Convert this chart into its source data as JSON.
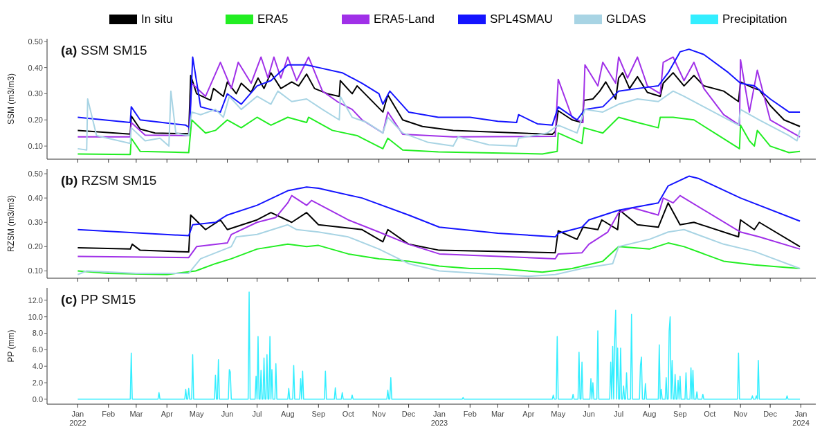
{
  "chart_data": [
    {
      "type": "line",
      "title": "(a) SSM SM15",
      "ylabel": "SSM (m3/m3)",
      "legend": "top",
      "tick_labels": "y",
      "xlim": [
        "2021-12-01",
        "2024-01-16"
      ],
      "xticks": [
        {
          "value": "2022-01-01",
          "label": null
        },
        {
          "value": "2022-02-01",
          "label": null
        },
        {
          "value": "2022-03-01",
          "label": null
        },
        {
          "value": "2022-04-01",
          "label": null
        },
        {
          "value": "2022-05-01",
          "label": null
        },
        {
          "value": "2022-06-01",
          "label": null
        },
        {
          "value": "2022-07-01",
          "label": null
        },
        {
          "value": "2022-08-01",
          "label": null
        },
        {
          "value": "2022-09-01",
          "label": null
        },
        {
          "value": "2022-10-01",
          "label": null
        },
        {
          "value": "2022-11-01",
          "label": null
        },
        {
          "value": "2022-12-01",
          "label": null
        },
        {
          "value": "2023-01-01",
          "label": null
        },
        {
          "value": "2023-02-01",
          "label": null
        },
        {
          "value": "2023-03-01",
          "label": null
        },
        {
          "value": "2023-04-01",
          "label": null
        },
        {
          "value": "2023-05-01",
          "label": null
        },
        {
          "value": "2023-06-01",
          "label": null
        },
        {
          "value": "2023-07-01",
          "label": null
        },
        {
          "value": "2023-08-01",
          "label": null
        },
        {
          "value": "2023-09-01",
          "label": null
        },
        {
          "value": "2023-10-01",
          "label": null
        },
        {
          "value": "2023-11-01",
          "label": null
        },
        {
          "value": "2023-12-01",
          "label": null
        },
        {
          "value": "2024-01-01",
          "label": null
        }
      ],
      "ylim": [
        0.05,
        0.51
      ],
      "yticks": [
        {
          "value": 0.1,
          "label": "0.10"
        },
        {
          "value": 0.2,
          "label": "0.20"
        },
        {
          "value": 0.3,
          "label": "0.30"
        },
        {
          "value": 0.4,
          "label": "0.40"
        },
        {
          "value": 0.5,
          "label": "0.50"
        }
      ],
      "series": [
        {
          "name": "In situ",
          "color": "#000000",
          "x": [
            "2022-01-01",
            "2022-02-23",
            "2022-02-24",
            "2022-03-05",
            "2022-03-20",
            "2022-04-23",
            "2022-04-25",
            "2022-05-01",
            "2022-05-15",
            "2022-05-18",
            "2022-05-28",
            "2022-06-01",
            "2022-06-10",
            "2022-06-15",
            "2022-06-25",
            "2022-07-02",
            "2022-07-08",
            "2022-07-15",
            "2022-07-25",
            "2022-08-05",
            "2022-08-12",
            "2022-08-20",
            "2022-08-28",
            "2022-09-10",
            "2022-09-22",
            "2022-09-23",
            "2022-10-05",
            "2022-10-10",
            "2022-11-05",
            "2022-11-10",
            "2022-11-25",
            "2022-12-15",
            "2023-01-15",
            "2023-04-25",
            "2023-04-28",
            "2023-05-01",
            "2023-05-15",
            "2023-05-25",
            "2023-05-27",
            "2023-06-05",
            "2023-06-12",
            "2023-06-18",
            "2023-06-28",
            "2023-07-01",
            "2023-07-05",
            "2023-07-12",
            "2023-07-20",
            "2023-07-30",
            "2023-08-12",
            "2023-08-15",
            "2023-08-25",
            "2023-09-05",
            "2023-09-15",
            "2023-09-25",
            "2023-10-15",
            "2023-10-30",
            "2023-11-01",
            "2023-11-15",
            "2023-11-20",
            "2023-12-01",
            "2023-12-15",
            "2023-12-31"
          ],
          "values": [
            0.16,
            0.146,
            0.215,
            0.165,
            0.15,
            0.147,
            0.37,
            0.3,
            0.275,
            0.32,
            0.29,
            0.345,
            0.3,
            0.34,
            0.305,
            0.36,
            0.32,
            0.38,
            0.32,
            0.345,
            0.33,
            0.375,
            0.32,
            0.3,
            0.29,
            0.35,
            0.3,
            0.33,
            0.23,
            0.295,
            0.2,
            0.175,
            0.16,
            0.145,
            0.155,
            0.235,
            0.2,
            0.19,
            0.275,
            0.28,
            0.31,
            0.345,
            0.28,
            0.36,
            0.38,
            0.32,
            0.365,
            0.305,
            0.29,
            0.34,
            0.38,
            0.33,
            0.37,
            0.33,
            0.31,
            0.27,
            0.345,
            0.32,
            0.315,
            0.255,
            0.2,
            0.175
          ]
        },
        {
          "name": "ERA5",
          "color": "#22ee22",
          "x": [
            "2022-01-01",
            "2022-02-23",
            "2022-02-24",
            "2022-03-05",
            "2022-04-23",
            "2022-04-26",
            "2022-05-10",
            "2022-05-20",
            "2022-06-01",
            "2022-06-15",
            "2022-07-01",
            "2022-07-15",
            "2022-08-01",
            "2022-08-20",
            "2022-08-22",
            "2022-09-15",
            "2022-10-10",
            "2022-10-15",
            "2022-11-05",
            "2022-11-10",
            "2022-11-25",
            "2022-12-31",
            "2023-04-15",
            "2023-04-30",
            "2023-05-01",
            "2023-05-25",
            "2023-05-27",
            "2023-06-15",
            "2023-07-01",
            "2023-07-20",
            "2023-08-10",
            "2023-08-12",
            "2023-08-25",
            "2023-09-15",
            "2023-10-10",
            "2023-10-31",
            "2023-11-01",
            "2023-11-10",
            "2023-11-15",
            "2023-11-18",
            "2023-12-01",
            "2023-12-20",
            "2023-12-31"
          ],
          "values": [
            0.07,
            0.068,
            0.13,
            0.08,
            0.075,
            0.2,
            0.15,
            0.16,
            0.2,
            0.17,
            0.21,
            0.18,
            0.21,
            0.19,
            0.21,
            0.16,
            0.14,
            0.13,
            0.09,
            0.13,
            0.085,
            0.078,
            0.07,
            0.08,
            0.15,
            0.11,
            0.17,
            0.15,
            0.21,
            0.19,
            0.17,
            0.21,
            0.21,
            0.2,
            0.14,
            0.09,
            0.18,
            0.12,
            0.1,
            0.16,
            0.1,
            0.075,
            0.08
          ]
        },
        {
          "name": "ERA5-Land",
          "color": "#a030e8",
          "x": [
            "2022-01-01",
            "2022-02-23",
            "2022-02-24",
            "2022-03-10",
            "2022-04-23",
            "2022-04-26",
            "2022-05-10",
            "2022-05-25",
            "2022-06-05",
            "2022-06-12",
            "2022-06-25",
            "2022-07-05",
            "2022-07-12",
            "2022-07-18",
            "2022-07-25",
            "2022-08-01",
            "2022-08-10",
            "2022-08-22",
            "2022-09-05",
            "2022-09-20",
            "2022-10-05",
            "2022-10-15",
            "2022-11-05",
            "2022-11-10",
            "2022-11-25",
            "2023-01-15",
            "2023-04-28",
            "2023-05-01",
            "2023-05-15",
            "2023-05-26",
            "2023-05-28",
            "2023-06-10",
            "2023-06-15",
            "2023-06-28",
            "2023-07-01",
            "2023-07-10",
            "2023-07-20",
            "2023-07-30",
            "2023-08-12",
            "2023-08-15",
            "2023-08-25",
            "2023-09-05",
            "2023-09-15",
            "2023-09-25",
            "2023-10-15",
            "2023-10-31",
            "2023-11-01",
            "2023-11-10",
            "2023-11-18",
            "2023-12-01",
            "2023-12-31"
          ],
          "values": [
            0.135,
            0.135,
            0.19,
            0.142,
            0.14,
            0.34,
            0.29,
            0.42,
            0.32,
            0.42,
            0.34,
            0.44,
            0.36,
            0.44,
            0.36,
            0.44,
            0.35,
            0.44,
            0.31,
            0.27,
            0.24,
            0.2,
            0.15,
            0.23,
            0.145,
            0.135,
            0.137,
            0.355,
            0.21,
            0.19,
            0.41,
            0.33,
            0.42,
            0.34,
            0.44,
            0.36,
            0.44,
            0.33,
            0.3,
            0.42,
            0.44,
            0.35,
            0.42,
            0.32,
            0.22,
            0.18,
            0.43,
            0.23,
            0.39,
            0.2,
            0.135
          ]
        },
        {
          "name": "SPL4SMAU",
          "color": "#1414ff",
          "x": [
            "2022-01-01",
            "2022-02-23",
            "2022-02-24",
            "2022-03-05",
            "2022-04-20",
            "2022-04-24",
            "2022-04-27",
            "2022-05-05",
            "2022-05-25",
            "2022-06-01",
            "2022-06-15",
            "2022-07-01",
            "2022-07-15",
            "2022-08-01",
            "2022-08-20",
            "2022-09-01",
            "2022-09-25",
            "2022-10-15",
            "2022-11-01",
            "2022-11-05",
            "2022-11-12",
            "2022-12-01",
            "2022-12-31",
            "2023-02-01",
            "2023-03-01",
            "2023-03-20",
            "2023-03-22",
            "2023-04-10",
            "2023-04-25",
            "2023-05-01",
            "2023-05-20",
            "2023-05-28",
            "2023-06-15",
            "2023-07-01",
            "2023-07-20",
            "2023-08-10",
            "2023-08-20",
            "2023-09-01",
            "2023-09-10",
            "2023-09-25",
            "2023-10-20",
            "2023-11-01",
            "2023-11-15",
            "2023-12-01",
            "2023-12-20",
            "2023-12-31"
          ],
          "values": [
            0.21,
            0.19,
            0.25,
            0.2,
            0.18,
            0.17,
            0.44,
            0.25,
            0.23,
            0.3,
            0.26,
            0.33,
            0.35,
            0.41,
            0.41,
            0.4,
            0.38,
            0.34,
            0.3,
            0.26,
            0.31,
            0.23,
            0.21,
            0.21,
            0.195,
            0.19,
            0.22,
            0.185,
            0.18,
            0.25,
            0.2,
            0.24,
            0.25,
            0.31,
            0.32,
            0.33,
            0.38,
            0.46,
            0.47,
            0.45,
            0.38,
            0.34,
            0.33,
            0.28,
            0.23,
            0.23
          ]
        },
        {
          "name": "GLDAS",
          "color": "#a8d4e4",
          "x": [
            "2022-01-01",
            "2022-01-10",
            "2022-01-11",
            "2022-01-20",
            "2022-02-23",
            "2022-02-24",
            "2022-03-10",
            "2022-03-25",
            "2022-04-03",
            "2022-04-05",
            "2022-04-10",
            "2022-04-23",
            "2022-04-26",
            "2022-05-05",
            "2022-05-20",
            "2022-05-28",
            "2022-06-03",
            "2022-06-15",
            "2022-07-01",
            "2022-07-15",
            "2022-07-22",
            "2022-08-05",
            "2022-08-20",
            "2022-09-05",
            "2022-09-22",
            "2022-09-23",
            "2022-10-05",
            "2022-10-20",
            "2022-11-05",
            "2022-11-10",
            "2022-11-25",
            "2022-12-20",
            "2023-01-15",
            "2023-01-20",
            "2023-02-20",
            "2023-03-20",
            "2023-03-22",
            "2023-04-20",
            "2023-05-01",
            "2023-05-20",
            "2023-05-28",
            "2023-06-15",
            "2023-07-01",
            "2023-07-20",
            "2023-08-10",
            "2023-08-25",
            "2023-09-05",
            "2023-09-25",
            "2023-10-30",
            "2023-11-01",
            "2023-11-20",
            "2023-12-20",
            "2023-12-28",
            "2023-12-31"
          ],
          "values": [
            0.09,
            0.085,
            0.28,
            0.14,
            0.11,
            0.17,
            0.12,
            0.13,
            0.1,
            0.31,
            0.15,
            0.14,
            0.23,
            0.22,
            0.24,
            0.21,
            0.29,
            0.24,
            0.29,
            0.26,
            0.31,
            0.27,
            0.28,
            0.24,
            0.2,
            0.29,
            0.21,
            0.19,
            0.15,
            0.21,
            0.15,
            0.115,
            0.1,
            0.135,
            0.105,
            0.1,
            0.13,
            0.15,
            0.18,
            0.15,
            0.24,
            0.23,
            0.26,
            0.28,
            0.27,
            0.31,
            0.29,
            0.25,
            0.18,
            0.24,
            0.2,
            0.14,
            0.12,
            0.16
          ]
        }
      ]
    },
    {
      "type": "line",
      "title": "(b) RZSM SM15",
      "ylabel": "RZSM (m3/m3)",
      "tick_labels": "y",
      "xlim": [
        "2021-12-01",
        "2024-01-16"
      ],
      "xticks": [
        {
          "value": "2022-01-01",
          "label": null
        },
        {
          "value": "2022-02-01",
          "label": null
        },
        {
          "value": "2022-03-01",
          "label": null
        },
        {
          "value": "2022-04-01",
          "label": null
        },
        {
          "value": "2022-05-01",
          "label": null
        },
        {
          "value": "2022-06-01",
          "label": null
        },
        {
          "value": "2022-07-01",
          "label": null
        },
        {
          "value": "2022-08-01",
          "label": null
        },
        {
          "value": "2022-09-01",
          "label": null
        },
        {
          "value": "2022-10-01",
          "label": null
        },
        {
          "value": "2022-11-01",
          "label": null
        },
        {
          "value": "2022-12-01",
          "label": null
        },
        {
          "value": "2023-01-01",
          "label": null
        },
        {
          "value": "2023-02-01",
          "label": null
        },
        {
          "value": "2023-03-01",
          "label": null
        },
        {
          "value": "2023-04-01",
          "label": null
        },
        {
          "value": "2023-05-01",
          "label": null
        },
        {
          "value": "2023-06-01",
          "label": null
        },
        {
          "value": "2023-07-01",
          "label": null
        },
        {
          "value": "2023-08-01",
          "label": null
        },
        {
          "value": "2023-09-01",
          "label": null
        },
        {
          "value": "2023-10-01",
          "label": null
        },
        {
          "value": "2023-11-01",
          "label": null
        },
        {
          "value": "2023-12-01",
          "label": null
        },
        {
          "value": "2024-01-01",
          "label": null
        }
      ],
      "ylim": [
        0.07,
        0.52
      ],
      "yticks": [
        {
          "value": 0.1,
          "label": "0.10"
        },
        {
          "value": 0.2,
          "label": "0.20"
        },
        {
          "value": 0.3,
          "label": "0.30"
        },
        {
          "value": 0.4,
          "label": "0.40"
        },
        {
          "value": 0.5,
          "label": "0.50"
        }
      ],
      "series": [
        {
          "color": "#000000",
          "x": [
            "2022-01-01",
            "2022-02-23",
            "2022-02-25",
            "2022-03-05",
            "2022-04-23",
            "2022-04-25",
            "2022-05-10",
            "2022-05-25",
            "2022-06-01",
            "2022-07-01",
            "2022-07-15",
            "2022-08-05",
            "2022-08-20",
            "2022-09-01",
            "2022-10-15",
            "2022-11-05",
            "2022-11-10",
            "2022-12-01",
            "2023-01-01",
            "2023-04-28",
            "2023-05-01",
            "2023-05-20",
            "2023-05-26",
            "2023-06-10",
            "2023-06-14",
            "2023-06-30",
            "2023-07-02",
            "2023-07-20",
            "2023-08-10",
            "2023-08-20",
            "2023-09-01",
            "2023-09-15",
            "2023-10-30",
            "2023-11-01",
            "2023-11-15",
            "2023-11-20",
            "2023-12-31"
          ],
          "values": [
            0.195,
            0.19,
            0.21,
            0.185,
            0.178,
            0.33,
            0.27,
            0.31,
            0.27,
            0.31,
            0.34,
            0.3,
            0.34,
            0.29,
            0.27,
            0.22,
            0.27,
            0.21,
            0.185,
            0.175,
            0.265,
            0.23,
            0.28,
            0.27,
            0.31,
            0.27,
            0.35,
            0.29,
            0.28,
            0.38,
            0.29,
            0.3,
            0.24,
            0.31,
            0.27,
            0.3,
            0.2
          ]
        },
        {
          "color": "#22ee22",
          "x": [
            "2022-01-01",
            "2022-02-01",
            "2022-04-01",
            "2022-04-30",
            "2022-05-20",
            "2022-06-05",
            "2022-07-01",
            "2022-08-01",
            "2022-08-20",
            "2022-09-01",
            "2022-10-01",
            "2022-11-01",
            "2022-12-01",
            "2023-01-01",
            "2023-02-01",
            "2023-03-01",
            "2023-04-15",
            "2023-05-15",
            "2023-06-15",
            "2023-07-01",
            "2023-08-01",
            "2023-08-20",
            "2023-09-05",
            "2023-10-15",
            "2023-11-15",
            "2023-12-31"
          ],
          "values": [
            0.1,
            0.09,
            0.085,
            0.1,
            0.13,
            0.15,
            0.19,
            0.21,
            0.2,
            0.205,
            0.17,
            0.15,
            0.14,
            0.12,
            0.11,
            0.11,
            0.095,
            0.11,
            0.14,
            0.2,
            0.19,
            0.215,
            0.2,
            0.14,
            0.125,
            0.11
          ]
        },
        {
          "color": "#a030e8",
          "x": [
            "2022-01-01",
            "2022-04-23",
            "2022-05-01",
            "2022-06-01",
            "2022-06-05",
            "2022-07-01",
            "2022-07-20",
            "2022-08-01",
            "2022-08-05",
            "2022-08-20",
            "2022-08-25",
            "2022-10-01",
            "2022-11-01",
            "2022-12-01",
            "2023-01-01",
            "2023-04-28",
            "2023-05-01",
            "2023-05-25",
            "2023-06-01",
            "2023-06-20",
            "2023-07-01",
            "2023-07-15",
            "2023-08-10",
            "2023-08-15",
            "2023-08-25",
            "2023-09-01",
            "2023-11-01",
            "2023-11-20",
            "2023-12-31"
          ],
          "values": [
            0.16,
            0.155,
            0.2,
            0.215,
            0.25,
            0.3,
            0.32,
            0.38,
            0.41,
            0.37,
            0.39,
            0.31,
            0.26,
            0.21,
            0.17,
            0.15,
            0.17,
            0.175,
            0.21,
            0.26,
            0.34,
            0.36,
            0.33,
            0.4,
            0.38,
            0.41,
            0.26,
            0.24,
            0.19
          ]
        },
        {
          "color": "#1414ff",
          "x": [
            "2022-01-01",
            "2022-04-23",
            "2022-04-27",
            "2022-05-20",
            "2022-06-01",
            "2022-07-01",
            "2022-08-01",
            "2022-08-20",
            "2022-09-01",
            "2022-10-15",
            "2022-12-01",
            "2023-01-01",
            "2023-03-01",
            "2023-04-28",
            "2023-05-01",
            "2023-05-25",
            "2023-06-01",
            "2023-07-01",
            "2023-08-10",
            "2023-08-20",
            "2023-09-10",
            "2023-09-20",
            "2023-11-01",
            "2023-12-31"
          ],
          "values": [
            0.27,
            0.245,
            0.29,
            0.3,
            0.33,
            0.37,
            0.43,
            0.445,
            0.44,
            0.4,
            0.33,
            0.28,
            0.255,
            0.24,
            0.255,
            0.28,
            0.31,
            0.35,
            0.38,
            0.45,
            0.49,
            0.48,
            0.4,
            0.305
          ]
        },
        {
          "color": "#a8d4e4",
          "x": [
            "2022-01-01",
            "2022-01-10",
            "2022-03-01",
            "2022-04-23",
            "2022-05-05",
            "2022-06-05",
            "2022-06-10",
            "2022-07-01",
            "2022-08-01",
            "2022-08-10",
            "2022-09-01",
            "2022-10-01",
            "2022-11-01",
            "2022-12-01",
            "2023-01-01",
            "2023-03-01",
            "2023-04-01",
            "2023-04-28",
            "2023-05-25",
            "2023-06-25",
            "2023-07-01",
            "2023-08-01",
            "2023-08-20",
            "2023-09-05",
            "2023-10-15",
            "2023-11-15",
            "2023-12-31"
          ],
          "values": [
            0.085,
            0.1,
            0.09,
            0.09,
            0.15,
            0.2,
            0.24,
            0.25,
            0.29,
            0.27,
            0.26,
            0.24,
            0.19,
            0.13,
            0.1,
            0.085,
            0.078,
            0.085,
            0.11,
            0.13,
            0.2,
            0.23,
            0.26,
            0.27,
            0.21,
            0.18,
            0.11
          ]
        }
      ]
    },
    {
      "type": "line",
      "title": "(c) PP SM15",
      "ylabel": "PP (mm)",
      "legend": "top",
      "xlim": [
        "2021-12-01",
        "2024-01-16"
      ],
      "xticks": [
        {
          "value": "2022-01-01",
          "label": "Jan\n2022"
        },
        {
          "value": "2022-02-01",
          "label": "Feb"
        },
        {
          "value": "2022-03-01",
          "label": "Mar"
        },
        {
          "value": "2022-04-01",
          "label": "Apr"
        },
        {
          "value": "2022-05-01",
          "label": "May"
        },
        {
          "value": "2022-06-01",
          "label": "Jun"
        },
        {
          "value": "2022-07-01",
          "label": "Jul"
        },
        {
          "value": "2022-08-01",
          "label": "Aug"
        },
        {
          "value": "2022-09-01",
          "label": "Sep"
        },
        {
          "value": "2022-10-01",
          "label": "Oct"
        },
        {
          "value": "2022-11-01",
          "label": "Nov"
        },
        {
          "value": "2022-12-01",
          "label": "Dec"
        },
        {
          "value": "2023-01-01",
          "label": "Jan\n2023"
        },
        {
          "value": "2023-02-01",
          "label": "Feb"
        },
        {
          "value": "2023-03-01",
          "label": "Mar"
        },
        {
          "value": "2023-04-01",
          "label": "Apr"
        },
        {
          "value": "2023-05-01",
          "label": "May"
        },
        {
          "value": "2023-06-01",
          "label": "Jun"
        },
        {
          "value": "2023-07-01",
          "label": "Jul"
        },
        {
          "value": "2023-08-01",
          "label": "Aug"
        },
        {
          "value": "2023-09-01",
          "label": "Sep"
        },
        {
          "value": "2023-10-01",
          "label": "Oct"
        },
        {
          "value": "2023-11-01",
          "label": "Nov"
        },
        {
          "value": "2023-12-01",
          "label": "Dec"
        },
        {
          "value": "2024-01-01",
          "label": "Jan\n2024"
        }
      ],
      "ylim": [
        -0.6,
        13.5
      ],
      "yticks": [
        {
          "value": 0,
          "label": "0.0"
        },
        {
          "value": 2,
          "label": "2.0"
        },
        {
          "value": 4,
          "label": "4.0"
        },
        {
          "value": 6,
          "label": "6.0"
        },
        {
          "value": 8,
          "label": "8.0"
        },
        {
          "value": 10,
          "label": "10.0"
        },
        {
          "value": 12,
          "label": "12.0"
        }
      ],
      "series": [
        {
          "name": "Precipitation",
          "color": "#33eeff",
          "x": [
            "2022-01-01",
            "2022-02-23",
            "2022-02-24",
            "2022-02-25",
            "2022-03-23",
            "2022-03-24",
            "2022-03-25",
            "2022-04-19",
            "2022-04-20",
            "2022-04-21",
            "2022-04-22",
            "2022-04-23",
            "2022-04-24",
            "2022-04-26",
            "2022-04-27",
            "2022-04-28",
            "2022-05-19",
            "2022-05-20",
            "2022-05-21",
            "2022-05-22",
            "2022-05-23",
            "2022-05-24",
            "2022-06-02",
            "2022-06-03",
            "2022-06-04",
            "2022-06-05",
            "2022-06-22",
            "2022-06-23",
            "2022-06-24",
            "2022-06-29",
            "2022-06-30",
            "2022-07-01",
            "2022-07-02",
            "2022-07-03",
            "2022-07-04",
            "2022-07-05",
            "2022-07-06",
            "2022-07-07",
            "2022-07-08",
            "2022-07-09",
            "2022-07-10",
            "2022-07-11",
            "2022-07-12",
            "2022-07-13",
            "2022-07-14",
            "2022-07-15",
            "2022-07-16",
            "2022-07-17",
            "2022-07-19",
            "2022-07-20",
            "2022-07-21",
            "2022-08-01",
            "2022-08-02",
            "2022-08-03",
            "2022-08-06",
            "2022-08-07",
            "2022-08-08",
            "2022-08-13",
            "2022-08-14",
            "2022-08-15",
            "2022-08-16",
            "2022-08-17",
            "2022-09-07",
            "2022-09-08",
            "2022-09-09",
            "2022-09-17",
            "2022-09-18",
            "2022-09-19",
            "2022-09-24",
            "2022-09-25",
            "2022-09-26",
            "2022-10-04",
            "2022-10-05",
            "2022-10-06",
            "2022-11-09",
            "2022-11-10",
            "2022-11-11",
            "2022-11-12",
            "2022-11-13",
            "2022-11-14",
            "2023-01-24",
            "2023-01-25",
            "2023-01-26",
            "2023-04-25",
            "2023-04-26",
            "2023-04-27",
            "2023-04-29",
            "2023-04-30",
            "2023-05-01",
            "2023-05-15",
            "2023-05-16",
            "2023-05-17",
            "2023-05-21",
            "2023-05-22",
            "2023-05-23",
            "2023-05-24",
            "2023-05-25",
            "2023-05-26",
            "2023-06-02",
            "2023-06-03",
            "2023-06-04",
            "2023-06-05",
            "2023-06-06",
            "2023-06-09",
            "2023-06-10",
            "2023-06-11",
            "2023-06-22",
            "2023-06-23",
            "2023-06-24",
            "2023-06-25",
            "2023-06-26",
            "2023-06-27",
            "2023-06-28",
            "2023-06-29",
            "2023-06-30",
            "2023-07-01",
            "2023-07-02",
            "2023-07-03",
            "2023-07-04",
            "2023-07-05",
            "2023-07-06",
            "2023-07-07",
            "2023-07-08",
            "2023-07-09",
            "2023-07-10",
            "2023-07-13",
            "2023-07-14",
            "2023-07-15",
            "2023-07-22",
            "2023-07-23",
            "2023-07-24",
            "2023-07-25",
            "2023-07-27",
            "2023-07-28",
            "2023-07-29",
            "2023-08-10",
            "2023-08-11",
            "2023-08-12",
            "2023-08-13",
            "2023-08-14",
            "2023-08-17",
            "2023-08-18",
            "2023-08-19",
            "2023-08-20",
            "2023-08-21",
            "2023-08-22",
            "2023-08-23",
            "2023-08-24",
            "2023-08-25",
            "2023-08-26",
            "2023-08-27",
            "2023-08-28",
            "2023-08-29",
            "2023-08-30",
            "2023-08-31",
            "2023-09-01",
            "2023-09-02",
            "2023-09-06",
            "2023-09-07",
            "2023-09-08",
            "2023-09-11",
            "2023-09-12",
            "2023-09-13",
            "2023-09-14",
            "2023-09-15",
            "2023-09-17",
            "2023-09-18",
            "2023-09-19",
            "2023-09-23",
            "2023-09-24",
            "2023-09-25",
            "2023-10-29",
            "2023-10-30",
            "2023-10-31",
            "2023-11-12",
            "2023-11-13",
            "2023-11-14",
            "2023-11-16",
            "2023-11-17",
            "2023-11-18",
            "2023-11-19",
            "2023-11-20",
            "2023-12-17",
            "2023-12-18",
            "2023-12-19",
            "2023-12-31"
          ],
          "values": [
            0,
            0,
            5.6,
            0,
            0,
            0.8,
            0,
            0,
            1.2,
            0,
            0,
            1.3,
            0,
            0,
            5.4,
            0,
            0,
            2.9,
            0,
            0,
            4.8,
            0,
            0,
            3.6,
            3.3,
            0,
            0,
            13.0,
            0,
            0,
            2.8,
            0,
            7.6,
            0,
            0,
            3.5,
            0,
            0,
            5.0,
            0,
            0,
            5.4,
            0,
            0,
            7.6,
            0,
            3.6,
            0,
            0,
            4.3,
            0,
            0,
            1.3,
            0,
            0,
            4.1,
            0,
            0,
            2.5,
            0,
            3.4,
            0,
            0,
            3.4,
            0,
            0,
            1.4,
            0,
            0,
            0.8,
            0,
            0,
            0.5,
            0,
            0,
            1.1,
            0,
            0,
            2.6,
            0,
            0,
            0.2,
            0,
            0,
            0.5,
            0,
            0,
            7.6,
            0,
            0,
            0.6,
            0,
            0,
            5.7,
            0,
            0,
            4.5,
            0,
            0,
            2.5,
            0,
            2.0,
            0,
            0,
            8.3,
            0,
            0,
            4.5,
            0,
            6.4,
            0,
            7.3,
            10.8,
            0,
            6.2,
            0,
            0,
            6.2,
            0,
            0,
            1.6,
            0,
            0,
            3.2,
            0,
            0,
            10.3,
            0,
            0,
            4.1,
            5.1,
            0,
            0,
            1.9,
            0,
            0,
            6.6,
            0,
            1.2,
            0,
            0,
            2.6,
            0,
            0,
            8.3,
            10.0,
            0,
            4.7,
            0,
            0,
            3.0,
            0,
            0,
            2.3,
            0,
            2.8,
            0,
            0,
            3.2,
            0,
            0,
            3.8,
            0,
            3.5,
            0,
            0,
            0.9,
            0,
            0,
            0.6,
            0,
            0,
            5.6,
            0,
            0,
            0.4,
            0,
            0,
            0.4,
            0,
            4.7,
            0,
            0,
            0.4,
            0,
            0
          ]
        }
      ]
    }
  ]
}
